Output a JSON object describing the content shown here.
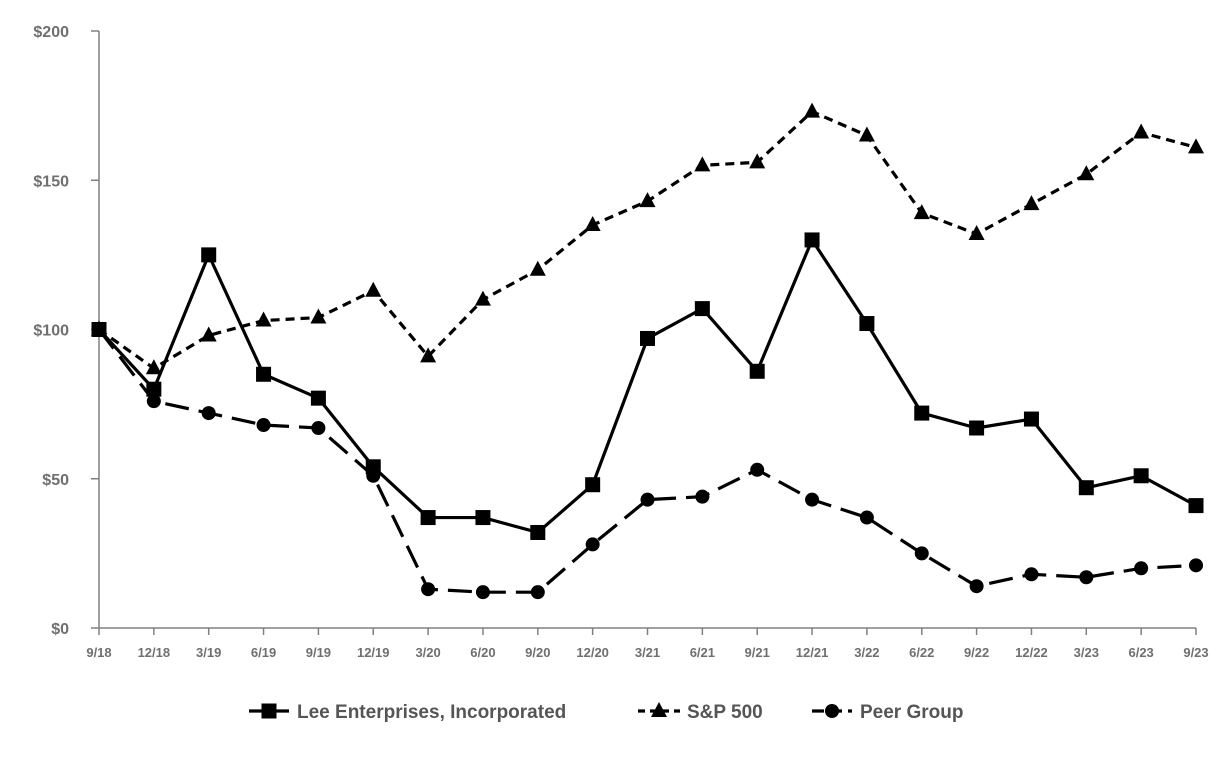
{
  "chart_data": {
    "type": "line",
    "title": "",
    "xlabel": "",
    "ylabel": "",
    "ylim": [
      0,
      200
    ],
    "yticks": [
      "$0",
      "$50",
      "$100",
      "$150",
      "$200"
    ],
    "ytick_values": [
      0,
      50,
      100,
      150,
      200
    ],
    "categories": [
      "9/18",
      "12/18",
      "3/19",
      "6/19",
      "9/19",
      "12/19",
      "3/20",
      "6/20",
      "9/20",
      "12/20",
      "3/21",
      "6/21",
      "9/21",
      "12/21",
      "3/22",
      "6/22",
      "9/22",
      "12/22",
      "3/23",
      "6/23",
      "9/23"
    ],
    "grid": false,
    "legend_position": "bottom",
    "series": [
      {
        "name": "Lee Enterprises, Incorporated",
        "marker": "square",
        "dash": "solid",
        "color": "#000000",
        "values": [
          100,
          80,
          125,
          85,
          77,
          54,
          37,
          37,
          32,
          48,
          97,
          107,
          86,
          130,
          102,
          72,
          67,
          70,
          47,
          51,
          41
        ]
      },
      {
        "name": "S&P 500",
        "marker": "triangle",
        "dash": "short-dash",
        "color": "#000000",
        "values": [
          100,
          87,
          98,
          103,
          104,
          113,
          91,
          110,
          120,
          135,
          143,
          155,
          156,
          173,
          165,
          139,
          132,
          142,
          152,
          166,
          161
        ]
      },
      {
        "name": "Peer Group",
        "marker": "circle",
        "dash": "long-dash",
        "color": "#000000",
        "values": [
          100,
          76,
          72,
          68,
          67,
          51,
          13,
          12,
          12,
          28,
          43,
          44,
          53,
          43,
          37,
          25,
          14,
          18,
          17,
          20,
          21
        ]
      }
    ]
  }
}
